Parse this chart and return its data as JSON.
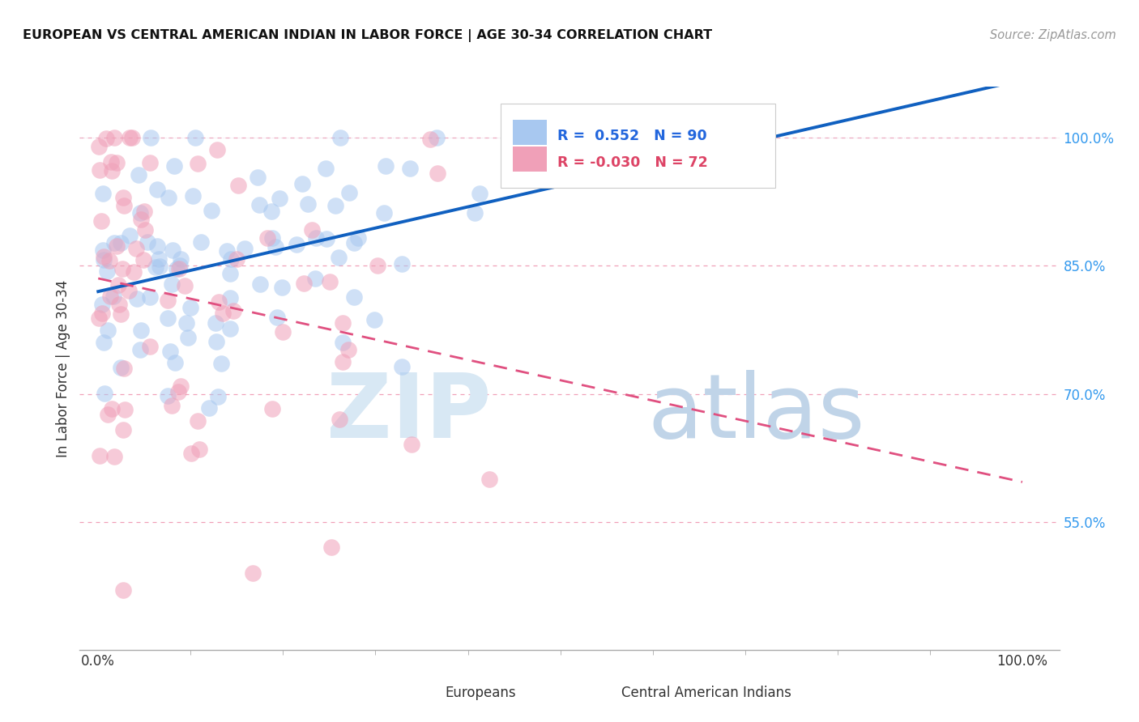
{
  "title": "EUROPEAN VS CENTRAL AMERICAN INDIAN IN LABOR FORCE | AGE 30-34 CORRELATION CHART",
  "source": "Source: ZipAtlas.com",
  "ylabel": "In Labor Force | Age 30-34",
  "ytick_vals": [
    0.55,
    0.7,
    0.85,
    1.0
  ],
  "ytick_labels": [
    "55.0%",
    "70.0%",
    "85.0%",
    "100.0%"
  ],
  "xlim": [
    -0.02,
    1.04
  ],
  "ylim": [
    0.4,
    1.06
  ],
  "legend_european_R": "0.552",
  "legend_european_N": "90",
  "legend_ca_indian_R": "-0.030",
  "legend_ca_indian_N": "72",
  "blue_color": "#A8C8F0",
  "pink_color": "#F0A0B8",
  "line_blue": "#1060C0",
  "line_pink": "#E05080",
  "grid_color": "#F0B8C8",
  "top_dots_blue": "#A8C8F0",
  "top_dots_pink": "#F0A0B8"
}
